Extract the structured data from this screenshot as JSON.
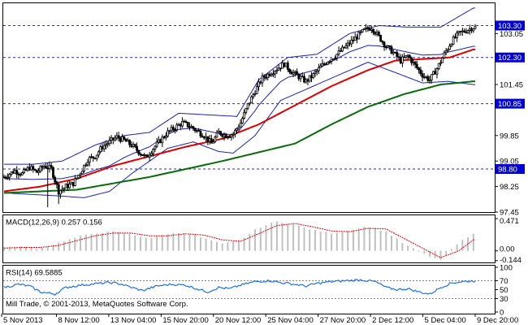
{
  "chart_data": [
    {
      "type": "candlestick",
      "ylim": [
        97.45,
        104.0
      ],
      "y_ticks": [
        "103.05",
        "101.45",
        "99.85",
        "99.05",
        "98.25",
        "97.45"
      ],
      "y_tick_values": [
        103.05,
        101.45,
        99.85,
        99.05,
        98.25,
        97.45
      ],
      "level_labels": [
        {
          "text": "103.30",
          "value": 103.3,
          "bg": "#0000cc"
        },
        {
          "text": "102.30",
          "value": 102.3,
          "bg": "#0000cc"
        },
        {
          "text": "100.85",
          "value": 100.85,
          "bg": "#0000cc"
        },
        {
          "text": "98.80",
          "value": 98.8,
          "bg": "#0000cc"
        }
      ],
      "x_labels": [
        "5 Nov 2013",
        "8 Nov 12:00",
        "13 Nov 04:00",
        "15 Nov 20:00",
        "20 Nov 12:00",
        "25 Nov 04:00",
        "27 Nov 20:00",
        "2 Dec 12:00",
        "5 Dec 04:00",
        "9 Dec 20:00"
      ],
      "close_anchors": [
        [
          0,
          98.55
        ],
        [
          6,
          98.75
        ],
        [
          10,
          98.65
        ],
        [
          14,
          98.85
        ],
        [
          18,
          98.7
        ],
        [
          22,
          98.9
        ],
        [
          26,
          98.8
        ],
        [
          30,
          98.1
        ],
        [
          34,
          98.25
        ],
        [
          38,
          98.35
        ],
        [
          42,
          98.7
        ],
        [
          46,
          99.1
        ],
        [
          50,
          99.2
        ],
        [
          54,
          99.5
        ],
        [
          58,
          99.65
        ],
        [
          62,
          99.8
        ],
        [
          66,
          99.7
        ],
        [
          70,
          99.55
        ],
        [
          74,
          99.35
        ],
        [
          78,
          99.15
        ],
        [
          82,
          99.45
        ],
        [
          86,
          99.7
        ],
        [
          90,
          99.95
        ],
        [
          94,
          100.1
        ],
        [
          98,
          100.25
        ],
        [
          102,
          100.15
        ],
        [
          106,
          100.0
        ],
        [
          110,
          99.85
        ],
        [
          114,
          99.6
        ],
        [
          118,
          99.95
        ],
        [
          122,
          99.85
        ],
        [
          126,
          99.9
        ],
        [
          130,
          100.25
        ],
        [
          134,
          100.8
        ],
        [
          138,
          101.25
        ],
        [
          142,
          101.65
        ],
        [
          146,
          101.8
        ],
        [
          150,
          101.95
        ],
        [
          154,
          102.1
        ],
        [
          158,
          101.85
        ],
        [
          162,
          101.7
        ],
        [
          166,
          101.55
        ],
        [
          170,
          101.75
        ],
        [
          174,
          102.0
        ],
        [
          178,
          102.2
        ],
        [
          182,
          102.35
        ],
        [
          186,
          102.55
        ],
        [
          190,
          102.75
        ],
        [
          194,
          102.95
        ],
        [
          198,
          103.15
        ],
        [
          202,
          103.25
        ],
        [
          206,
          102.95
        ],
        [
          210,
          102.65
        ],
        [
          214,
          102.45
        ],
        [
          218,
          102.2
        ],
        [
          222,
          102.35
        ],
        [
          226,
          102.05
        ],
        [
          230,
          101.75
        ],
        [
          234,
          101.6
        ],
        [
          238,
          101.95
        ],
        [
          242,
          102.4
        ],
        [
          246,
          102.8
        ],
        [
          250,
          103.05
        ],
        [
          254,
          103.15
        ],
        [
          258,
          103.25
        ]
      ],
      "ma_red_anchors": [
        [
          0,
          98.1
        ],
        [
          20,
          98.25
        ],
        [
          40,
          98.5
        ],
        [
          60,
          98.9
        ],
        [
          80,
          99.2
        ],
        [
          100,
          99.5
        ],
        [
          120,
          99.75
        ],
        [
          140,
          100.2
        ],
        [
          160,
          100.8
        ],
        [
          180,
          101.4
        ],
        [
          200,
          101.9
        ],
        [
          215,
          102.2
        ],
        [
          230,
          102.25
        ],
        [
          245,
          102.3
        ],
        [
          258,
          102.55
        ]
      ],
      "ma_green_anchors": [
        [
          0,
          98.05
        ],
        [
          40,
          98.15
        ],
        [
          80,
          98.55
        ],
        [
          120,
          99.05
        ],
        [
          160,
          99.6
        ],
        [
          180,
          100.2
        ],
        [
          200,
          100.75
        ],
        [
          220,
          101.15
        ],
        [
          240,
          101.45
        ],
        [
          258,
          101.55
        ]
      ],
      "bb_upper_anchors": [
        [
          0,
          98.95
        ],
        [
          16,
          98.95
        ],
        [
          32,
          99.05
        ],
        [
          50,
          99.55
        ],
        [
          66,
          99.85
        ],
        [
          80,
          99.95
        ],
        [
          96,
          100.55
        ],
        [
          112,
          100.5
        ],
        [
          128,
          100.45
        ],
        [
          140,
          101.6
        ],
        [
          156,
          102.3
        ],
        [
          172,
          102.4
        ],
        [
          190,
          103.05
        ],
        [
          206,
          103.3
        ],
        [
          222,
          103.25
        ],
        [
          240,
          103.25
        ],
        [
          258,
          103.85
        ]
      ],
      "bb_lower_anchors": [
        [
          0,
          98.05
        ],
        [
          16,
          98.0
        ],
        [
          32,
          97.95
        ],
        [
          44,
          97.9
        ],
        [
          58,
          98.1
        ],
        [
          70,
          98.65
        ],
        [
          90,
          99.45
        ],
        [
          104,
          99.65
        ],
        [
          118,
          99.35
        ],
        [
          126,
          99.3
        ],
        [
          138,
          99.85
        ],
        [
          152,
          100.95
        ],
        [
          168,
          101.35
        ],
        [
          184,
          101.75
        ],
        [
          200,
          102.15
        ],
        [
          214,
          101.85
        ],
        [
          230,
          101.5
        ],
        [
          244,
          101.55
        ],
        [
          258,
          101.45
        ]
      ]
    },
    {
      "type": "histogram",
      "title": "MACD(12,26,9) 0.257 0.156",
      "y_ticks": [
        "0.471",
        "0.00",
        "-0.144"
      ],
      "y_tick_values": [
        0.471,
        0.0,
        -0.144
      ],
      "ylim": [
        -0.17,
        0.52
      ],
      "hist_anchors": [
        [
          0,
          0.05
        ],
        [
          10,
          0.06
        ],
        [
          20,
          0.03
        ],
        [
          30,
          0.12
        ],
        [
          40,
          0.2
        ],
        [
          50,
          0.26
        ],
        [
          60,
          0.28
        ],
        [
          70,
          0.24
        ],
        [
          80,
          0.18
        ],
        [
          90,
          0.25
        ],
        [
          100,
          0.27
        ],
        [
          110,
          0.18
        ],
        [
          120,
          0.1
        ],
        [
          130,
          0.16
        ],
        [
          140,
          0.34
        ],
        [
          150,
          0.43
        ],
        [
          160,
          0.38
        ],
        [
          170,
          0.3
        ],
        [
          180,
          0.26
        ],
        [
          190,
          0.3
        ],
        [
          200,
          0.36
        ],
        [
          210,
          0.28
        ],
        [
          220,
          0.1
        ],
        [
          230,
          -0.04
        ],
        [
          240,
          -0.14
        ],
        [
          250,
          0.12
        ],
        [
          258,
          0.26
        ]
      ],
      "signal_anchors": [
        [
          0,
          0.04
        ],
        [
          10,
          0.05
        ],
        [
          20,
          0.05
        ],
        [
          30,
          0.08
        ],
        [
          40,
          0.15
        ],
        [
          50,
          0.22
        ],
        [
          60,
          0.26
        ],
        [
          70,
          0.26
        ],
        [
          80,
          0.22
        ],
        [
          90,
          0.22
        ],
        [
          100,
          0.25
        ],
        [
          110,
          0.23
        ],
        [
          120,
          0.16
        ],
        [
          130,
          0.14
        ],
        [
          140,
          0.25
        ],
        [
          150,
          0.37
        ],
        [
          160,
          0.4
        ],
        [
          170,
          0.35
        ],
        [
          180,
          0.29
        ],
        [
          190,
          0.28
        ],
        [
          200,
          0.33
        ],
        [
          210,
          0.32
        ],
        [
          220,
          0.18
        ],
        [
          230,
          0.04
        ],
        [
          240,
          -0.1
        ],
        [
          250,
          0.0
        ],
        [
          258,
          0.16
        ]
      ]
    },
    {
      "type": "line",
      "title": "RSI(14) 69.5885",
      "y_ticks": [
        "100",
        "70",
        "50",
        "30",
        "0"
      ],
      "y_tick_values": [
        100,
        70,
        50,
        30,
        0
      ],
      "ylim": [
        0,
        100
      ],
      "rsi_anchors": [
        [
          0,
          55
        ],
        [
          8,
          62
        ],
        [
          14,
          58
        ],
        [
          20,
          45
        ],
        [
          28,
          40
        ],
        [
          34,
          55
        ],
        [
          42,
          60
        ],
        [
          50,
          63
        ],
        [
          58,
          66
        ],
        [
          64,
          63
        ],
        [
          70,
          55
        ],
        [
          76,
          48
        ],
        [
          84,
          58
        ],
        [
          92,
          62
        ],
        [
          100,
          60
        ],
        [
          106,
          52
        ],
        [
          112,
          45
        ],
        [
          118,
          55
        ],
        [
          124,
          52
        ],
        [
          130,
          60
        ],
        [
          138,
          68
        ],
        [
          146,
          70
        ],
        [
          152,
          66
        ],
        [
          160,
          62
        ],
        [
          166,
          58
        ],
        [
          172,
          64
        ],
        [
          180,
          68
        ],
        [
          188,
          70
        ],
        [
          196,
          72
        ],
        [
          204,
          68
        ],
        [
          210,
          55
        ],
        [
          216,
          50
        ],
        [
          222,
          52
        ],
        [
          228,
          45
        ],
        [
          234,
          40
        ],
        [
          240,
          55
        ],
        [
          246,
          65
        ],
        [
          252,
          68
        ],
        [
          258,
          69.6
        ]
      ]
    }
  ],
  "footer": {
    "copyright": "Mill Trade, © 2001-2013, MetaQuotes Software Corp."
  }
}
